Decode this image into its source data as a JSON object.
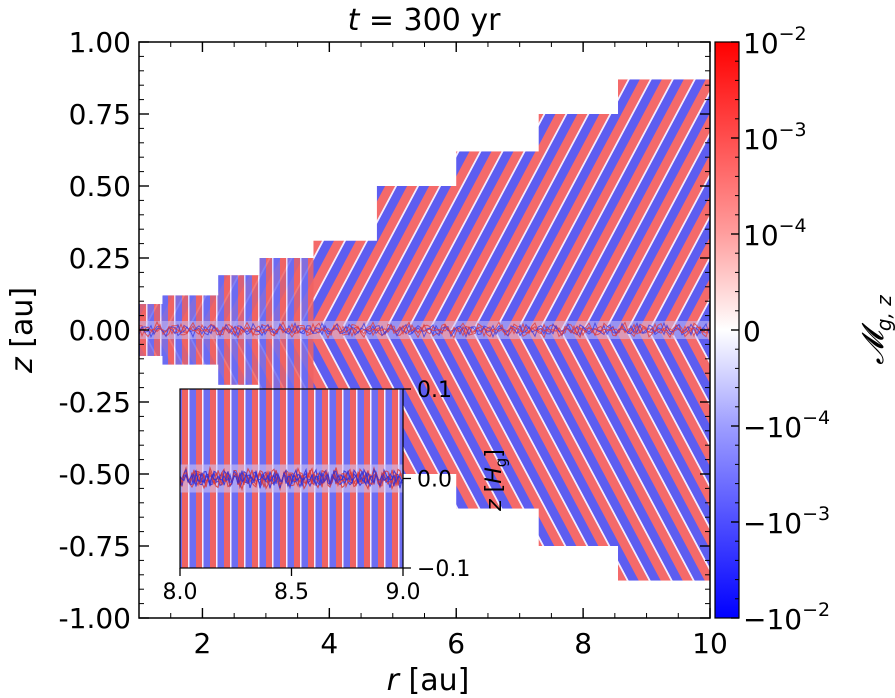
{
  "chart_data": {
    "type": "heatmap",
    "title": "t = 300 yr",
    "title_var": "t",
    "title_rest": " = 300 yr",
    "xlabel_var": "r",
    "xlabel_unit": " [au]",
    "ylabel_var": "z",
    "ylabel_unit": " [au]",
    "xlim": [
      1.0,
      10.0
    ],
    "ylim": [
      -1.0,
      1.0
    ],
    "x_ticks": [
      2,
      4,
      6,
      8,
      10
    ],
    "x_tick_labels": [
      "2",
      "4",
      "6",
      "8",
      "10"
    ],
    "y_ticks": [
      1.0,
      0.75,
      0.5,
      0.25,
      0.0,
      -0.25,
      -0.5,
      -0.75,
      -1.0
    ],
    "y_tick_labels": [
      "1.00",
      "0.75",
      "0.50",
      "0.25",
      "0.00",
      "-0.25",
      "-0.50",
      "-0.75",
      "-1.00"
    ],
    "colorbar": {
      "label": "𝓜g,z",
      "label_main": "𝓜",
      "label_sub": "g, z",
      "scale": "symlog",
      "ticks": [
        {
          "value": 0.01,
          "base": "10",
          "exp": "−2"
        },
        {
          "value": 0.001,
          "base": "10",
          "exp": "−3"
        },
        {
          "value": 0.0001,
          "base": "10",
          "exp": "−4"
        },
        {
          "value": 0,
          "base": "0",
          "exp": ""
        },
        {
          "value": -0.0001,
          "base": "−10",
          "exp": "−4"
        },
        {
          "value": -0.001,
          "base": "−10",
          "exp": "−3"
        },
        {
          "value": -0.01,
          "base": "−10",
          "exp": "−2"
        }
      ],
      "colors": {
        "max": "#ff0000",
        "mid": "#ffffff",
        "min": "#0000ff"
      }
    },
    "domain_blocks": [
      {
        "r0": 1.0,
        "r1": 1.37,
        "zmax": 0.09
      },
      {
        "r0": 1.37,
        "r1": 2.25,
        "zmax": 0.12
      },
      {
        "r0": 2.25,
        "r1": 2.9,
        "zmax": 0.19
      },
      {
        "r0": 2.9,
        "r1": 3.75,
        "zmax": 0.25
      },
      {
        "r0": 3.75,
        "r1": 4.75,
        "zmax": 0.31
      },
      {
        "r0": 4.75,
        "r1": 6.0,
        "zmax": 0.5
      },
      {
        "r0": 6.0,
        "r1": 7.3,
        "zmax": 0.62
      },
      {
        "r0": 7.3,
        "r1": 8.55,
        "zmax": 0.75
      },
      {
        "r0": 8.55,
        "r1": 10.0,
        "zmax": 0.87
      }
    ],
    "inset": {
      "xlim": [
        8.0,
        9.0
      ],
      "ylim": [
        -0.1,
        0.1
      ],
      "x_ticks": [
        8.0,
        8.5,
        9.0
      ],
      "x_tick_labels": [
        "8.0",
        "8.5",
        "9.0"
      ],
      "y_ticks": [
        0.1,
        0.0,
        -0.1
      ],
      "y_tick_labels": [
        "0.1",
        "0.0",
        "−0.1"
      ],
      "ylabel_var": "z",
      "ylabel_unit_open": " [",
      "ylabel_H": "H",
      "ylabel_sub": "g",
      "ylabel_unit_close": "]"
    }
  }
}
